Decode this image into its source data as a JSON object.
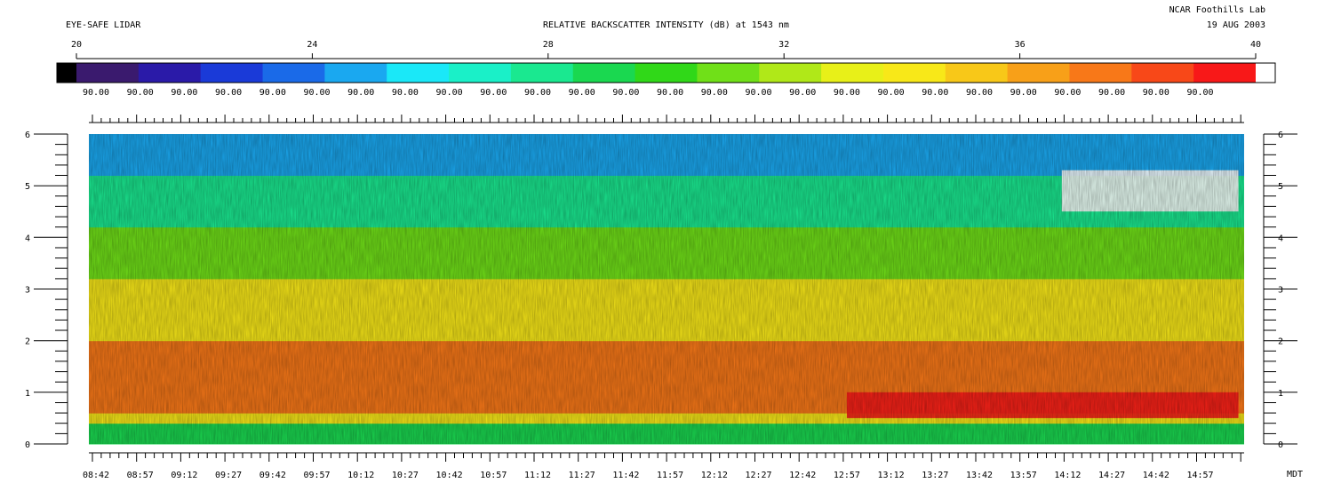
{
  "header": {
    "instrument": "EYE-SAFE LIDAR",
    "title": "RELATIVE BACKSCATTER INTENSITY (dB) at 1543 nm",
    "lab": "NCAR Foothills Lab",
    "date": "19 AUG 2003"
  },
  "chart_data": {
    "type": "heatmap",
    "title": "RELATIVE BACKSCATTER INTENSITY (dB) at 1543 nm",
    "colorbar": {
      "range": [
        20,
        40
      ],
      "tick_labels": [
        "20",
        "24",
        "28",
        "32",
        "36",
        "40"
      ],
      "tick_values": [
        20,
        24,
        28,
        32,
        36,
        40
      ],
      "under_color": "#000000",
      "over_color": "#ffffff",
      "column_label": "90.00",
      "column_label_count": 26,
      "colormap": [
        "#3a1a6e",
        "#2a1aa8",
        "#1a3ad8",
        "#1a6ae8",
        "#1aa8f0",
        "#1ae8f8",
        "#1af0c8",
        "#1ae890",
        "#1ad850",
        "#30d818",
        "#70e018",
        "#b0e818",
        "#e8f018",
        "#f8e818",
        "#f8c818",
        "#f8a018",
        "#f87818",
        "#f84818",
        "#f81818"
      ]
    },
    "x_axis": {
      "unit_label": "MDT",
      "tick_labels": [
        "08:42",
        "08:57",
        "09:12",
        "09:27",
        "09:42",
        "09:57",
        "10:12",
        "10:27",
        "10:42",
        "10:57",
        "11:12",
        "11:27",
        "11:42",
        "11:57",
        "12:12",
        "12:27",
        "12:42",
        "12:57",
        "13:12",
        "13:27",
        "13:42",
        "13:57",
        "14:12",
        "14:27",
        "14:42",
        "14:57"
      ]
    },
    "y_axis": {
      "range": [
        0,
        6
      ],
      "tick_labels": [
        "0",
        "1",
        "2",
        "3",
        "4",
        "5",
        "6"
      ]
    },
    "layers": [
      {
        "description": "",
        "height_km": [
          0,
          0.4
        ],
        "dB": 29
      },
      {
        "height_km": [
          0.4,
          0.6
        ],
        "dB": 34
      },
      {
        "height_km": [
          0.6,
          2.0
        ],
        "dB": 37
      },
      {
        "height_km": [
          2.0,
          3.2
        ],
        "dB": 34
      },
      {
        "height_km": [
          3.2,
          4.2
        ],
        "dB": 31
      },
      {
        "height_km": [
          4.2,
          5.2
        ],
        "dB": 28
      },
      {
        "height_km": [
          5.2,
          6.0
        ],
        "dB": 25
      }
    ],
    "features": [
      {
        "name": "",
        "time_range": [
          "12:57",
          "15:10"
        ],
        "height_km": [
          0.5,
          1.0
        ],
        "dB": 39.5
      },
      {
        "name": "",
        "time_range": [
          "14:10",
          "15:10"
        ],
        "height_km": [
          4.5,
          5.3
        ],
        "dB": 41
      }
    ]
  }
}
